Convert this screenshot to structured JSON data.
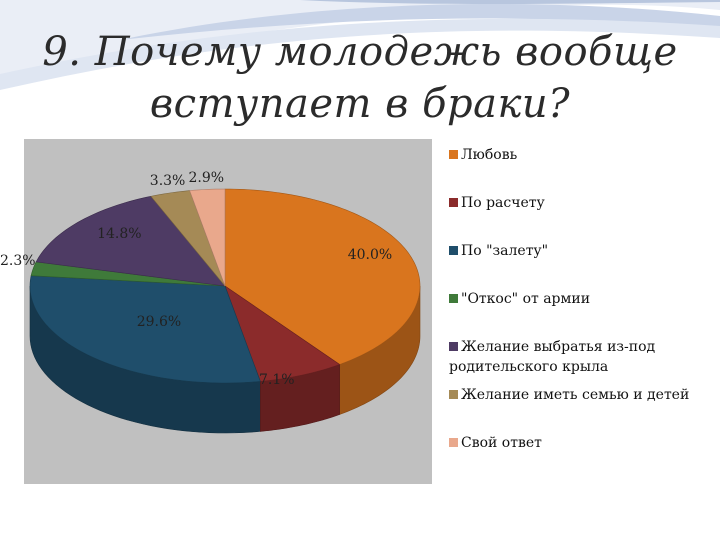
{
  "title_line1": "9. Почему молодежь вообще",
  "title_line2": "вступает в браки?",
  "colors": {
    "title": "#2b2b2b",
    "plot_background": "#c0c0c0"
  },
  "chart_data": {
    "type": "pie",
    "style": "3d",
    "categories": [
      "Любовь",
      "По расчету",
      "По \"залету\"",
      "\"Откос\" от армии",
      "Желание выбратья из-под родительского крыла",
      "Желание иметь семью и детей",
      "Свой ответ"
    ],
    "values": [
      40.0,
      7.1,
      29.6,
      2.3,
      14.8,
      3.3,
      2.9
    ],
    "labels": [
      "40.0%",
      "7.1%",
      "29.6%",
      "2.3%",
      "14.8%",
      "3.3%",
      "2.9%"
    ],
    "colors": [
      "#d9751e",
      "#8b2b2b",
      "#1f4e6b",
      "#3f7a3a",
      "#4e3b64",
      "#a58a56",
      "#e9a88c"
    ],
    "legend_position": "right"
  }
}
